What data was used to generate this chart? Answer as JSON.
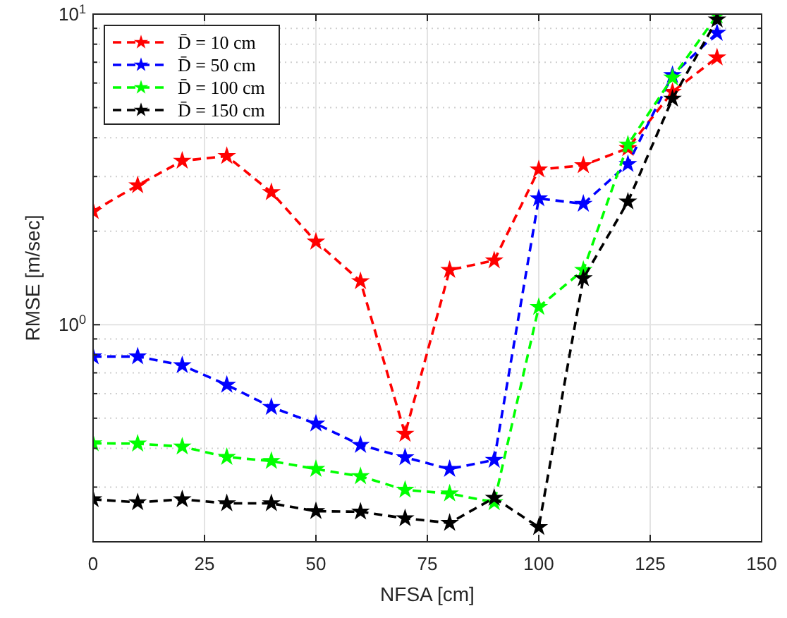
{
  "chart_data": {
    "type": "line",
    "xlabel": "NFSA [cm]",
    "ylabel": "RMSE [m/sec]",
    "x": [
      0,
      10,
      20,
      30,
      40,
      50,
      60,
      70,
      80,
      90,
      100,
      110,
      120,
      130,
      140
    ],
    "series": [
      {
        "name": "D̄ = 10 cm",
        "color": "#ff0000",
        "values": [
          2.32,
          2.81,
          3.37,
          3.49,
          2.67,
          1.85,
          1.38,
          0.445,
          1.5,
          1.61,
          3.16,
          3.26,
          3.7,
          5.62,
          7.25
        ]
      },
      {
        "name": "D̄ = 50 cm",
        "color": "#0000ff",
        "values": [
          0.79,
          0.79,
          0.74,
          0.64,
          0.543,
          0.48,
          0.41,
          0.374,
          0.343,
          0.367,
          2.55,
          2.45,
          3.29,
          6.36,
          8.7
        ]
      },
      {
        "name": "D̄ = 100 cm",
        "color": "#00ff00",
        "values": [
          0.415,
          0.414,
          0.405,
          0.375,
          0.364,
          0.343,
          0.325,
          0.294,
          0.286,
          0.268,
          1.14,
          1.5,
          3.8,
          6.24,
          9.9
        ]
      },
      {
        "name": "D̄ = 150 cm",
        "color": "#000000",
        "values": [
          0.274,
          0.268,
          0.274,
          0.266,
          0.266,
          0.251,
          0.25,
          0.238,
          0.23,
          0.277,
          0.223,
          1.41,
          2.49,
          5.34,
          9.6
        ]
      }
    ],
    "xlim": [
      0,
      150
    ],
    "xticks": [
      0,
      25,
      50,
      75,
      100,
      125,
      150
    ],
    "ylim": [
      0.2,
      10
    ],
    "log": true,
    "yticks": [
      {
        "value": 0.2,
        "label": null
      },
      {
        "value": 0.3,
        "label": null
      },
      {
        "value": 0.4,
        "label": null
      },
      {
        "value": 0.5,
        "label": null
      },
      {
        "value": 0.6,
        "label": null
      },
      {
        "value": 0.7,
        "label": null
      },
      {
        "value": 0.8,
        "label": null
      },
      {
        "value": 0.9,
        "label": null
      },
      {
        "value": 1,
        "label": "10$^{0}$"
      },
      {
        "value": 2,
        "label": null
      },
      {
        "value": 3,
        "label": null
      },
      {
        "value": 4,
        "label": null
      },
      {
        "value": 5,
        "label": null
      },
      {
        "value": 6,
        "label": null
      },
      {
        "value": 7,
        "label": null
      },
      {
        "value": 8,
        "label": null
      },
      {
        "value": 9,
        "label": null
      },
      {
        "value": 10,
        "label": "10$^{1}$"
      }
    ],
    "grid": true,
    "legend": "top left",
    "marker": "star",
    "line_style": "dashed"
  }
}
